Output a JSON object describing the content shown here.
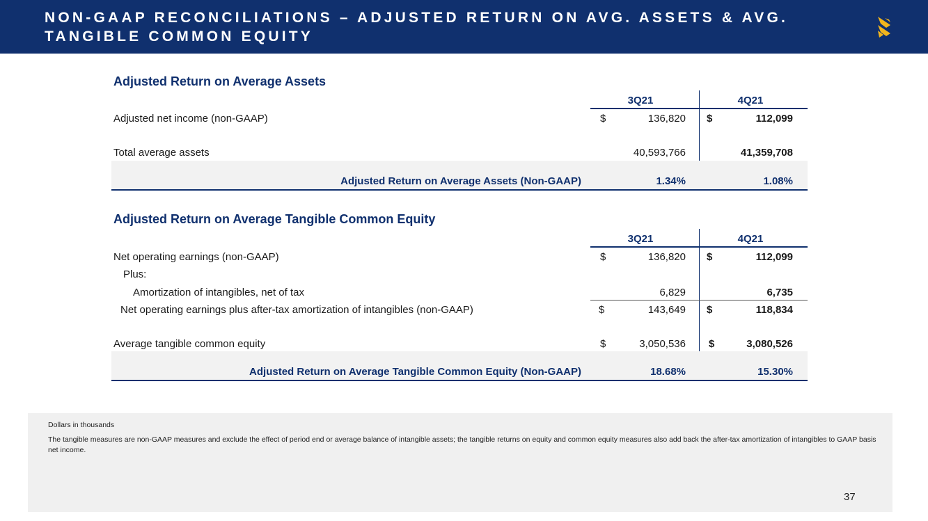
{
  "header": {
    "title": "NON-GAAP RECONCILIATIONS – ADJUSTED RETURN ON AVG. ASSETS & AVG. TANGIBLE COMMON EQUITY",
    "logo_icon": "brand-s-logo-icon",
    "colors": {
      "bar": "#10306e",
      "logo": "#f2b51d"
    }
  },
  "roa": {
    "title": "Adjusted Return on Average Assets",
    "col1": "3Q21",
    "col2": "4Q21",
    "rows": [
      {
        "label": "Adjusted net income (non-GAAP)",
        "dol1": "$",
        "v1": "136,820",
        "dol2": "$",
        "v2": "112,099"
      },
      {
        "label": "Total average assets",
        "dol1": "",
        "v1": "40,593,766",
        "dol2": "",
        "v2": "41,359,708"
      }
    ],
    "total": {
      "label": "Adjusted Return on Average Assets (Non-GAAP)",
      "v1": "1.34%",
      "v2": "1.08%"
    }
  },
  "rotce": {
    "title": "Adjusted Return on Average Tangible Common Equity",
    "col1": "3Q21",
    "col2": "4Q21",
    "rows": [
      {
        "label": "Net operating earnings (non-GAAP)",
        "dol1": "$",
        "v1": "136,820",
        "dol2": "$",
        "v2": "112,099"
      },
      {
        "label": "Plus:",
        "dol1": "",
        "v1": "",
        "dol2": "",
        "v2": ""
      },
      {
        "label": "Amortization of intangibles, net of tax",
        "dol1": "",
        "v1": "6,829",
        "dol2": "",
        "v2": "6,735"
      },
      {
        "label": "Net operating earnings plus after-tax amortization of intangibles (non-GAAP)",
        "dol1": "$",
        "v1": "143,649",
        "dol2": "$",
        "v2": "118,834"
      },
      {
        "label": "Average tangible common equity",
        "dol1": "$",
        "v1": "3,050,536",
        "dol2": "$",
        "v2": "3,080,526"
      }
    ],
    "total": {
      "label": "Adjusted Return on Average Tangible Common Equity (Non-GAAP)",
      "v1": "18.68%",
      "v2": "15.30%"
    }
  },
  "footnote": {
    "line1": "Dollars in thousands",
    "line2": "The tangible measures are non-GAAP measures and exclude the effect of period end or average balance of intangible assets; the tangible returns on equity and common equity measures also add back the after-tax amortization of intangibles to GAAP basis net income."
  },
  "page_number": "37"
}
